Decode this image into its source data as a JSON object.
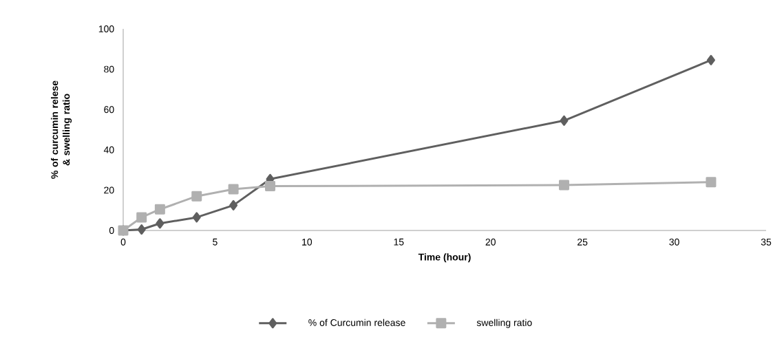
{
  "chart_data": {
    "type": "line",
    "xlabel": "Time (hour)",
    "ylabel": "% of curcumin relese & swelling ratio",
    "x": [
      0,
      1,
      2,
      4,
      6,
      8,
      24,
      32
    ],
    "series": [
      {
        "name": "% of Curcumin release",
        "color": "#5f5f5f",
        "marker": "diamond",
        "values": [
          0,
          0.5,
          3.5,
          6.5,
          12.5,
          25.5,
          54.5,
          84.5
        ]
      },
      {
        "name": "swelling ratio",
        "color": "#b0b0b0",
        "marker": "square",
        "values": [
          0,
          6.5,
          10.5,
          17,
          20.5,
          22,
          22.5,
          24
        ]
      }
    ],
    "xlim": [
      0,
      35
    ],
    "ylim": [
      0,
      100
    ],
    "xticks": [
      0,
      5,
      10,
      15,
      20,
      25,
      30,
      35
    ],
    "yticks": [
      0,
      20,
      40,
      60,
      80,
      100
    ],
    "grid": false,
    "legend": "bottom",
    "line_style": "solid"
  }
}
